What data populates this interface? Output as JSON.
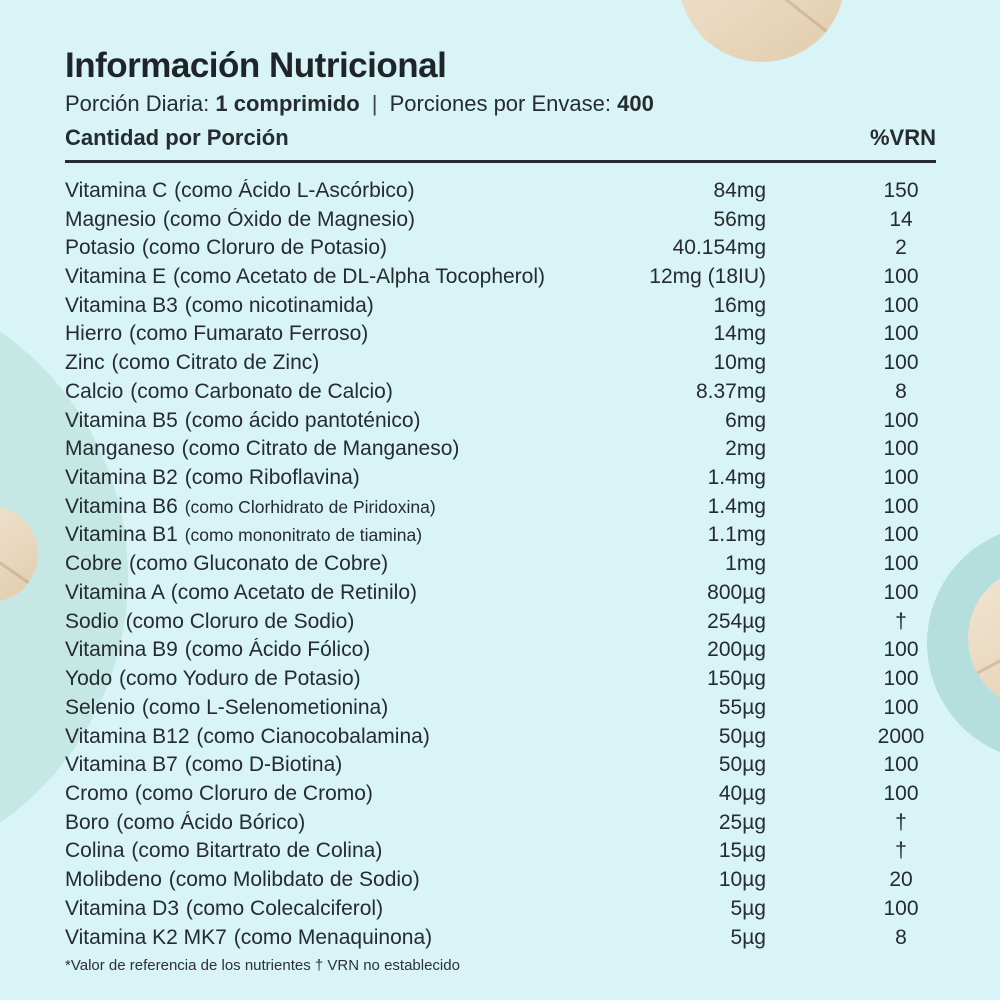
{
  "label": {
    "title": "Información Nutricional",
    "serving": {
      "label1": "Porción Diaria:",
      "value1": "1 comprimido",
      "separator": "|",
      "label2": "Porciones por Envase:",
      "value2": "400"
    },
    "table": {
      "header_left": "Cantidad por Porción",
      "header_right": "%VRN",
      "rows": [
        {
          "name": "Vitamina C",
          "detail": "(como Ácido L-Ascórbico)",
          "amount": "84mg",
          "vrn": "150"
        },
        {
          "name": "Magnesio",
          "detail": "(como Óxido de Magnesio)",
          "amount": "56mg",
          "vrn": "14"
        },
        {
          "name": "Potasio",
          "detail": "(como Cloruro de Potasio)",
          "amount": "40.154mg",
          "vrn": "2"
        },
        {
          "name": "Vitamina E",
          "detail": "(como Acetato de DL-Alpha Tocopherol)",
          "amount": "12mg (18IU)",
          "vrn": "100"
        },
        {
          "name": "Vitamina B3",
          "detail": "(como nicotinamida)",
          "amount": "16mg",
          "vrn": "100"
        },
        {
          "name": "Hierro",
          "detail": "(como Fumarato Ferroso)",
          "amount": "14mg",
          "vrn": "100"
        },
        {
          "name": "Zinc",
          "detail": "(como Citrato de Zinc)",
          "amount": "10mg",
          "vrn": "100"
        },
        {
          "name": "Calcio",
          "detail": "(como Carbonato de Calcio)",
          "amount": "8.37mg",
          "vrn": "8"
        },
        {
          "name": "Vitamina B5",
          "detail": "(como ácido pantoténico)",
          "amount": "6mg",
          "vrn": "100"
        },
        {
          "name": "Manganeso",
          "detail": "(como Citrato de Manganeso)",
          "amount": "2mg",
          "vrn": "100"
        },
        {
          "name": "Vitamina B2",
          "detail": "(como Riboflavina)",
          "amount": "1.4mg",
          "vrn": "100"
        },
        {
          "name": "Vitamina B6",
          "detail": "(como Clorhidrato de Piridoxina)",
          "amount": "1.4mg",
          "vrn": "100",
          "small_detail": true
        },
        {
          "name": "Vitamina B1",
          "detail": "(como mononitrato de tiamina)",
          "amount": "1.1mg",
          "vrn": "100",
          "small_detail": true
        },
        {
          "name": "Cobre",
          "detail": "(como Gluconato de Cobre)",
          "amount": "1mg",
          "vrn": "100"
        },
        {
          "name": "Vitamina A",
          "detail": "(como Acetato de Retinilo)",
          "amount": "800µg",
          "vrn": "100"
        },
        {
          "name": "Sodio",
          "detail": "(como Cloruro de Sodio)",
          "amount": "254µg",
          "vrn": "†"
        },
        {
          "name": "Vitamina B9",
          "detail": "(como Ácido Fólico)",
          "amount": "200µg",
          "vrn": "100"
        },
        {
          "name": "Yodo",
          "detail": "(como Yoduro de Potasio)",
          "amount": "150µg",
          "vrn": "100"
        },
        {
          "name": "Selenio",
          "detail": "(como L-Selenometionina)",
          "amount": "55µg",
          "vrn": "100"
        },
        {
          "name": "Vitamina B12",
          "detail": "(como Cianocobalamina)",
          "amount": "50µg",
          "vrn": "2000"
        },
        {
          "name": "Vitamina B7",
          "detail": "(como D-Biotina)",
          "amount": "50µg",
          "vrn": "100"
        },
        {
          "name": "Cromo",
          "detail": "(como Cloruro de Cromo)",
          "amount": "40µg",
          "vrn": "100"
        },
        {
          "name": "Boro",
          "detail": "(como Ácido Bórico)",
          "amount": "25µg",
          "vrn": "†"
        },
        {
          "name": "Colina",
          "detail": "(como Bitartrato de Colina)",
          "amount": "15µg",
          "vrn": "†"
        },
        {
          "name": "Molibdeno",
          "detail": "(como Molibdato de Sodio)",
          "amount": "10µg",
          "vrn": "20"
        },
        {
          "name": "Vitamina D3",
          "detail": "(como Colecalciferol)",
          "amount": "5µg",
          "vrn": "100"
        },
        {
          "name": "Vitamina K2 MK7",
          "detail": "(como Menaquinona)",
          "amount": "5µg",
          "vrn": "8"
        }
      ]
    },
    "footnote": "*Valor de referencia de los nutrientes † VRN no establecido"
  },
  "colors": {
    "background": "#d8f4f6",
    "teal_circle_left": "#c6e8e4",
    "teal_circle_right": "#b4dfdc",
    "tablet_beige": "#ead8bf",
    "text": "#252b2f",
    "rule": "#262d31"
  }
}
